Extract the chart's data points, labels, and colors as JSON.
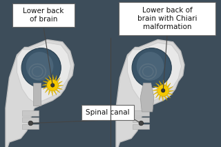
{
  "bg_color": "#3d4d5a",
  "head_fill": "#d8d8d8",
  "head_stroke": "#c0c0c0",
  "skull_fill": "#e0e0e0",
  "brain_fill": "#3a5468",
  "brain_light": "#4a6478",
  "brain_fold": "#5a7488",
  "brainstem_fill": "#b0b0b0",
  "cerebellum_yellow": "#f5c800",
  "cerebellum_dark": "#c8a000",
  "label1_text": "Lower back\nof brain",
  "label2_text": "Lower back of\nbrain with Chiari\nmalformation",
  "label3_text": "Spinal canal",
  "box_bg": "#ffffff",
  "text_color": "#111111",
  "line_color": "#444444",
  "divider_color": "#444444"
}
